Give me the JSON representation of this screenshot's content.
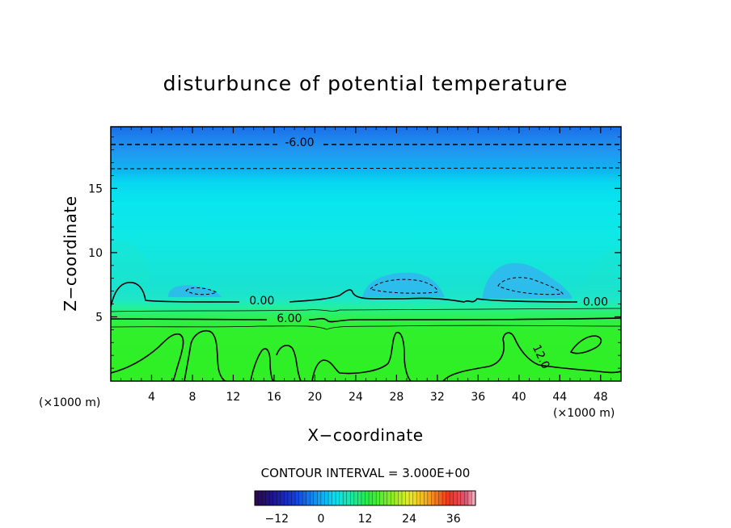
{
  "chart_data": {
    "type": "heatmap",
    "title": "disturbunce of potential temperature",
    "xlabel": "X−coordinate",
    "ylabel": "Z−coordinate",
    "x_unit": "(×1000 m)",
    "y_unit": "(×1000 m)",
    "xlim": [
      0,
      50
    ],
    "ylim": [
      0,
      19.8
    ],
    "x_ticks": [
      "4",
      "8",
      "12",
      "16",
      "20",
      "24",
      "28",
      "32",
      "36",
      "40",
      "44",
      "48"
    ],
    "x_tick_values": [
      4,
      8,
      12,
      16,
      20,
      24,
      28,
      32,
      36,
      40,
      44,
      48
    ],
    "y_ticks": [
      "5",
      "10",
      "15"
    ],
    "y_tick_values": [
      5,
      10,
      15
    ],
    "grid": false,
    "contour_interval_text": "CONTOUR INTERVAL = 3.000E+00",
    "contour_interval": 3.0,
    "contour_labels": [
      {
        "text": "-6.00",
        "x": 18.5,
        "z": 18.6
      },
      {
        "text": "0.00",
        "x": 14.8,
        "z": 6.3
      },
      {
        "text": "0.00",
        "x": 47.5,
        "z": 6.2
      },
      {
        "text": "6.00",
        "x": 17.5,
        "z": 4.9
      },
      {
        "text": "12.0",
        "x": 42.2,
        "z": 1.9
      }
    ],
    "colorbar": {
      "ticks": [
        "−12",
        "0",
        "12",
        "24",
        "36"
      ],
      "tick_values": [
        -12,
        0,
        12,
        24,
        36
      ],
      "min": -18,
      "max": 42,
      "position": "bottom"
    },
    "field_bands": [
      {
        "z_from": 18.8,
        "z_to": 19.8,
        "value": -8
      },
      {
        "z_from": 16.8,
        "z_to": 18.8,
        "value": -5
      },
      {
        "z_from": 6.3,
        "z_to": 16.8,
        "value": -1
      },
      {
        "z_from": 5.0,
        "z_to": 6.3,
        "value": 3
      },
      {
        "z_from": 0.0,
        "z_to": 5.0,
        "value": 10
      }
    ]
  }
}
